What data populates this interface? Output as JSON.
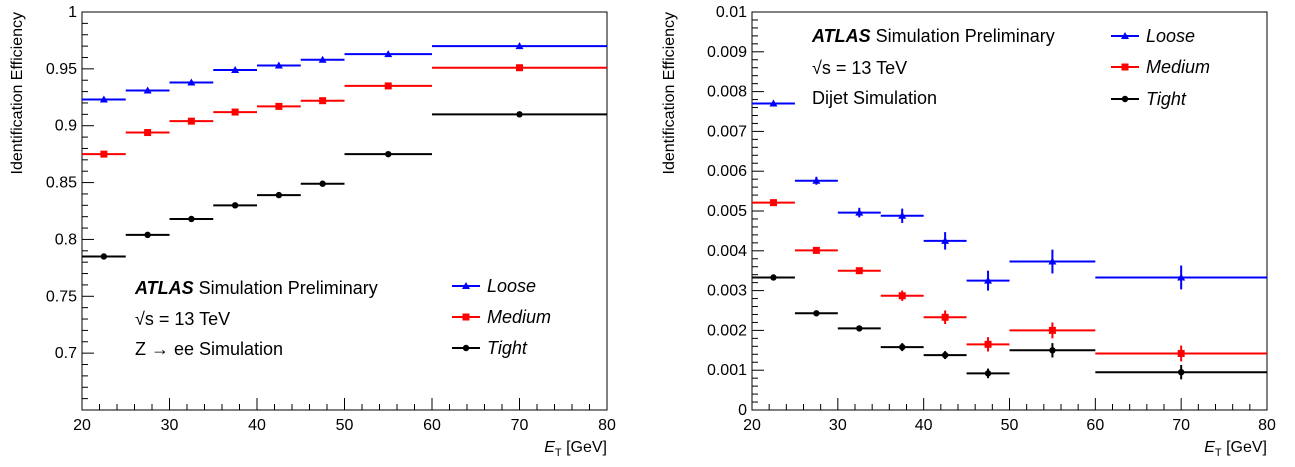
{
  "chart_data": [
    {
      "type": "scatter",
      "xlabel_main": "E",
      "xlabel_sub": "T",
      "xlabel_unit": " [GeV]",
      "ylabel": "Identification Efficiency",
      "xlim": [
        20,
        80
      ],
      "ylim": [
        0.65,
        1.0
      ],
      "xticks": [
        "20",
        "30",
        "40",
        "50",
        "60",
        "70",
        "80"
      ],
      "yticks": [
        "0.7",
        "0.75",
        "0.8",
        "0.85",
        "0.9",
        "0.95",
        "1"
      ],
      "annotation": {
        "atlas": "ATLAS",
        "label": " Simulation Preliminary",
        "energy": "√s = 13 TeV",
        "sample": "Z → ee Simulation"
      },
      "legend_position": "bottom-right",
      "bins": [
        [
          20,
          25
        ],
        [
          25,
          30
        ],
        [
          30,
          35
        ],
        [
          35,
          40
        ],
        [
          40,
          45
        ],
        [
          45,
          50
        ],
        [
          50,
          60
        ],
        [
          60,
          80
        ]
      ],
      "series": [
        {
          "name": "Loose",
          "color": "#0000ff",
          "marker": "triangle",
          "values": [
            0.923,
            0.931,
            0.938,
            0.949,
            0.953,
            0.958,
            0.963,
            0.97
          ],
          "errors": [
            0.001,
            0.001,
            0.001,
            0.001,
            0.001,
            0.001,
            0.001,
            0.001
          ]
        },
        {
          "name": "Medium",
          "color": "#ff0000",
          "marker": "square",
          "values": [
            0.875,
            0.894,
            0.904,
            0.912,
            0.917,
            0.922,
            0.935,
            0.951
          ],
          "errors": [
            0.001,
            0.001,
            0.001,
            0.001,
            0.001,
            0.001,
            0.001,
            0.001
          ]
        },
        {
          "name": "Tight",
          "color": "#000000",
          "marker": "circle",
          "values": [
            0.785,
            0.804,
            0.818,
            0.83,
            0.839,
            0.849,
            0.875,
            0.91
          ],
          "errors": [
            0.001,
            0.001,
            0.001,
            0.001,
            0.001,
            0.001,
            0.001,
            0.001
          ]
        }
      ]
    },
    {
      "type": "scatter",
      "xlabel_main": "E",
      "xlabel_sub": "T",
      "xlabel_unit": " [GeV]",
      "ylabel": "Identification Efficiency",
      "xlim": [
        20,
        80
      ],
      "ylim": [
        0,
        0.01
      ],
      "xticks": [
        "20",
        "30",
        "40",
        "50",
        "60",
        "70",
        "80"
      ],
      "yticks": [
        "0",
        "0.001",
        "0.002",
        "0.003",
        "0.004",
        "0.005",
        "0.006",
        "0.007",
        "0.008",
        "0.009",
        "0.01"
      ],
      "annotation": {
        "atlas": "ATLAS",
        "label": " Simulation Preliminary",
        "energy": "√s = 13 TeV",
        "sample": "Dijet Simulation"
      },
      "legend_position": "top-right",
      "bins": [
        [
          20,
          25
        ],
        [
          25,
          30
        ],
        [
          30,
          35
        ],
        [
          35,
          40
        ],
        [
          40,
          45
        ],
        [
          45,
          50
        ],
        [
          50,
          60
        ],
        [
          60,
          80
        ]
      ],
      "series": [
        {
          "name": "Loose",
          "color": "#0000ff",
          "marker": "triangle",
          "values": [
            0.0077,
            0.00576,
            0.00496,
            0.00488,
            0.00425,
            0.00325,
            0.00373,
            0.00333
          ],
          "errors": [
            5e-05,
            0.0001,
            0.00012,
            0.00018,
            0.00022,
            0.00025,
            0.0003,
            0.0003
          ]
        },
        {
          "name": "Medium",
          "color": "#ff0000",
          "marker": "square",
          "values": [
            0.00521,
            0.00401,
            0.0035,
            0.00287,
            0.00233,
            0.00165,
            0.002,
            0.00142
          ],
          "errors": [
            4e-05,
            7e-05,
            8e-05,
            0.00013,
            0.00017,
            0.00018,
            0.0002,
            0.0002
          ]
        },
        {
          "name": "Tight",
          "color": "#000000",
          "marker": "circle",
          "values": [
            0.00333,
            0.00243,
            0.00205,
            0.00158,
            0.00138,
            0.00092,
            0.0015,
            0.00095
          ],
          "errors": [
            3e-05,
            4e-05,
            6e-05,
            0.0001,
            0.0001,
            0.00012,
            0.00018,
            0.00018
          ]
        }
      ]
    }
  ]
}
